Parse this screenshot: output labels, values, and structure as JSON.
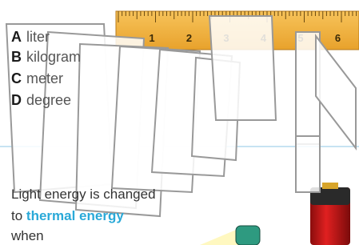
{
  "answers": [
    {
      "letter": "A",
      "text": "liter"
    },
    {
      "letter": "B",
      "text": "kilogram"
    },
    {
      "letter": "C",
      "text": "meter"
    },
    {
      "letter": "D",
      "text": "degree"
    }
  ],
  "ruler": {
    "labels": [
      "1",
      "2",
      "3",
      "4",
      "5",
      "6"
    ]
  },
  "passage": {
    "line1": "Light energy is changed",
    "line2_prefix": "to",
    "line2_highlight": "thermal energy",
    "line3": "when"
  }
}
